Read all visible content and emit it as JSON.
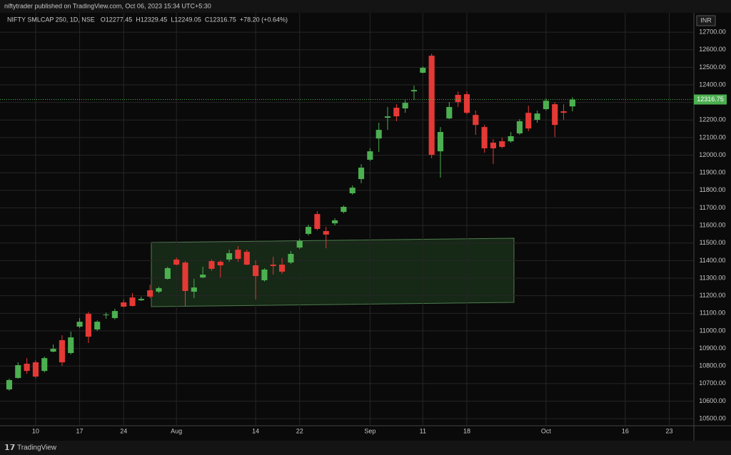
{
  "header": "niftytrader published on TradingView.com, Oct 06, 2023 15:34 UTC+5:30",
  "footer": "TradingView",
  "chart_data": {
    "type": "candlestick",
    "title": "NIFTY SMLCAP 250, 1D, NSE",
    "ohlc_legend": [
      "O12277.45",
      "H12329.45",
      "L12249.05",
      "C12316.75",
      "+78.20 (+0.64%)"
    ],
    "currency": "INR",
    "open": [
      10667,
      10732,
      10813,
      10821,
      10772,
      10882,
      10947,
      10874,
      11024,
      11097,
      11008,
      11089,
      11073,
      11162,
      11190,
      11174,
      11231,
      11223,
      11296,
      11406,
      11389,
      11223,
      11304,
      11397,
      11393,
      11406,
      11462,
      11450,
      11373,
      11288,
      11377,
      11377,
      11389,
      11474,
      11552,
      11665,
      11568,
      11612,
      11677,
      11783,
      11864,
      11974,
      12095,
      12213,
      12270,
      12266,
      12363,
      12469,
      12566,
      12022,
      12209,
      12343,
      12347,
      12229,
      12160,
      12071,
      12079,
      12079,
      12124,
      12241,
      12201,
      12262,
      12290,
      12250,
      12277.45
    ],
    "high": [
      10728,
      10821,
      10845,
      10833,
      10854,
      10923,
      10975,
      10996,
      11073,
      11109,
      11060,
      11105,
      11126,
      11178,
      11215,
      11195,
      11263,
      11251,
      11365,
      11418,
      11397,
      11296,
      11365,
      11406,
      11401,
      11462,
      11483,
      11462,
      11401,
      11357,
      11422,
      11414,
      11454,
      11523,
      11604,
      11681,
      11592,
      11641,
      11714,
      11828,
      11949,
      12039,
      12185,
      12274,
      12290,
      12314,
      12396,
      12505,
      12578,
      12160,
      12302,
      12363,
      12363,
      12254,
      12172,
      12091,
      12100,
      12132,
      12205,
      12282,
      12254,
      12323,
      12302,
      12290,
      12329.45
    ],
    "low": [
      10659,
      10728,
      10756,
      10732,
      10764,
      10878,
      10801,
      10866,
      11016,
      10931,
      11000,
      11069,
      11065,
      11134,
      11138,
      11170,
      11186,
      11215,
      11292,
      11373,
      11138,
      11186,
      11300,
      11341,
      11304,
      11393,
      11393,
      11373,
      11178,
      11280,
      11320,
      11324,
      11381,
      11466,
      11543,
      11572,
      11470,
      11600,
      11669,
      11775,
      11840,
      11966,
      12018,
      12144,
      12193,
      12241,
      12314,
      12465,
      11982,
      11872,
      12205,
      12274,
      12233,
      12116,
      12014,
      11949,
      12039,
      12071,
      12116,
      12136,
      12185,
      12254,
      12103,
      12201,
      12249.05
    ],
    "close": [
      10720,
      10805,
      10772,
      10740,
      10845,
      10898,
      10821,
      10963,
      11052,
      10967,
      11052,
      11093,
      11113,
      11138,
      11142,
      11182,
      11195,
      11243,
      11357,
      11377,
      11227,
      11247,
      11320,
      11353,
      11373,
      11442,
      11410,
      11377,
      11312,
      11349,
      11369,
      11337,
      11438,
      11511,
      11592,
      11580,
      11548,
      11629,
      11706,
      11815,
      11929,
      12022,
      12144,
      12221,
      12221,
      12298,
      12371,
      12497,
      12002,
      12132,
      12274,
      12302,
      12241,
      12172,
      12039,
      12039,
      12047,
      12108,
      12193,
      12152,
      12237,
      12310,
      12172,
      12241,
      12316.75
    ],
    "up_color": "#4caf50",
    "down_color": "#e53935",
    "xlim": [
      -1.05,
      77.8
    ],
    "xticks": [
      {
        "value": 3,
        "label": "10"
      },
      {
        "value": 8,
        "label": "17"
      },
      {
        "value": 13,
        "label": "24"
      },
      {
        "value": 19,
        "label": "Aug"
      },
      {
        "value": 28,
        "label": "14"
      },
      {
        "value": 33,
        "label": "22"
      },
      {
        "value": 41,
        "label": "Sep"
      },
      {
        "value": 47,
        "label": "11"
      },
      {
        "value": 52,
        "label": "18"
      },
      {
        "value": 61,
        "label": "Oct"
      },
      {
        "value": 70,
        "label": "16"
      },
      {
        "value": 75,
        "label": "23"
      }
    ],
    "ylim": [
      10460,
      12810
    ],
    "yticks": [
      {
        "value": 10500,
        "label": "10500.00"
      },
      {
        "value": 10600,
        "label": "10600.00"
      },
      {
        "value": 10700,
        "label": "10700.00"
      },
      {
        "value": 10800,
        "label": "10800.00"
      },
      {
        "value": 10900,
        "label": "10900.00"
      },
      {
        "value": 11000,
        "label": "11000.00"
      },
      {
        "value": 11100,
        "label": "11100.00"
      },
      {
        "value": 11200,
        "label": "11200.00"
      },
      {
        "value": 11300,
        "label": "11300.00"
      },
      {
        "value": 11400,
        "label": "11400.00"
      },
      {
        "value": 11500,
        "label": "11500.00"
      },
      {
        "value": 11600,
        "label": "11600.00"
      },
      {
        "value": 11700,
        "label": "11700.00"
      },
      {
        "value": 11800,
        "label": "11800.00"
      },
      {
        "value": 11900,
        "label": "11900.00"
      },
      {
        "value": 12000,
        "label": "12000.00"
      },
      {
        "value": 12100,
        "label": "12100.00"
      },
      {
        "value": 12200,
        "label": "12200.00"
      },
      {
        "value": 12300,
        "label": "12300.00"
      },
      {
        "value": 12400,
        "label": "12400.00"
      },
      {
        "value": 12500,
        "label": "12500.00"
      },
      {
        "value": 12600,
        "label": "12600.00"
      },
      {
        "value": 12700,
        "label": "12700.00"
      }
    ],
    "grid": true
  }
}
